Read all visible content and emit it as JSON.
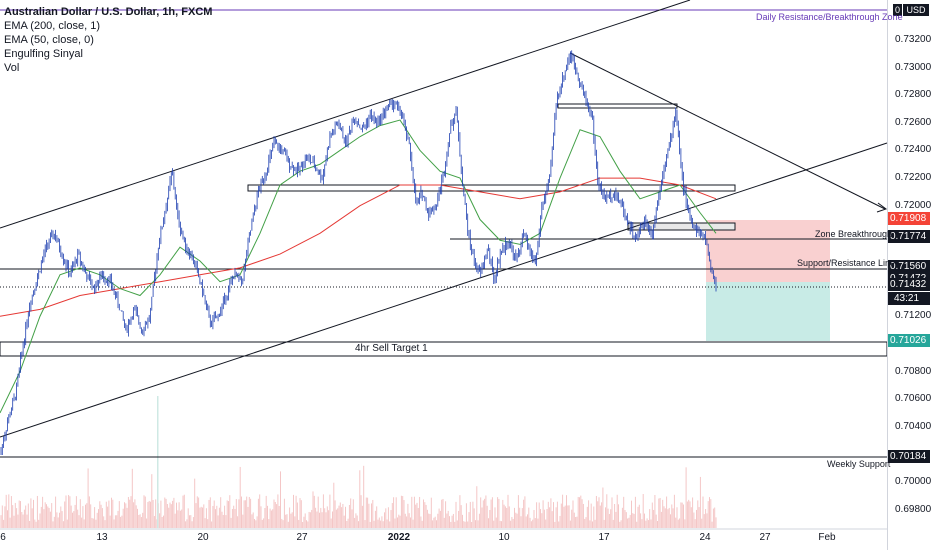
{
  "legend": {
    "symbol": "Australian Dollar / U.S. Dollar, 1h, FXCM",
    "ema200": "EMA (200, close, 1)",
    "ema50": "EMA (50, close, 0)",
    "engulfing": "Engulfing Sinyal",
    "vol": "Vol"
  },
  "currency_badge": "USD",
  "currency_flag": "0",
  "countdown": "43:21",
  "colors": {
    "candle": "#1e3fb0",
    "ema200": "#e53935",
    "ema50": "#43a047",
    "sl_zone": "#f9d0d0",
    "tp_zone": "#c8ebe6",
    "volume": "#f4c6c6",
    "trendline": "#131722",
    "purple_line": "#673ab7"
  },
  "chart_data": {
    "type": "candlestick",
    "x_ticks": [
      {
        "label": "6",
        "bold": false
      },
      {
        "label": "13",
        "bold": false
      },
      {
        "label": "20",
        "bold": false
      },
      {
        "label": "27",
        "bold": false
      },
      {
        "label": "2022",
        "bold": true
      },
      {
        "label": "10",
        "bold": false
      },
      {
        "label": "17",
        "bold": false
      },
      {
        "label": "24",
        "bold": false
      },
      {
        "label": "27",
        "bold": false
      },
      {
        "label": "Feb",
        "bold": false
      }
    ],
    "y_ticks": [
      "0.73200",
      "0.73000",
      "0.72800",
      "0.72600",
      "0.72400",
      "0.72200",
      "0.72000",
      "0.71200",
      "0.70800",
      "0.70600",
      "0.70400",
      "0.70000",
      "0.69800"
    ],
    "ylim": [
      0.6966,
      0.7346
    ],
    "price_labels": [
      {
        "value": "0.71908",
        "price": 0.71908,
        "bg": "#f44336",
        "fg": "#ffffff"
      },
      {
        "value": "0.71774",
        "price": 0.71774,
        "bg": "#131722",
        "fg": "#ffffff"
      },
      {
        "value": "0.71560",
        "price": 0.7156,
        "bg": "#131722",
        "fg": "#ffffff"
      },
      {
        "value": "0.71472",
        "price": 0.71472,
        "bg": "#131722",
        "fg": "#ffffff"
      },
      {
        "value": "0.71432",
        "price": 0.71432,
        "bg": "#131722",
        "fg": "#ffffff"
      },
      {
        "value": "0.71026",
        "price": 0.71026,
        "bg": "#26a69a",
        "fg": "#ffffff"
      },
      {
        "value": "0.70184",
        "price": 0.70184,
        "bg": "#131722",
        "fg": "#ffffff"
      }
    ],
    "horizontal_levels": [
      {
        "name": "Daily Resistance/Breakthrough Zone",
        "price": 0.7339
      },
      {
        "name": "Zone Breakthrough",
        "price": 0.71774
      },
      {
        "name": "Support/Resistance Line",
        "price": 0.7156
      },
      {
        "name": "4hr Sell Target 1",
        "price": 0.71026
      },
      {
        "name": "Weekly Support",
        "price": 0.70184
      }
    ],
    "annotations": [
      "Daily Resistance/Breakthrough Zone",
      "Zone Breakthrough",
      "Support/Resistance Line",
      "4hr Sell Target 1",
      "Weekly Support"
    ],
    "price_path": [
      [
        0,
        0.702
      ],
      [
        8,
        0.7045
      ],
      [
        16,
        0.7065
      ],
      [
        22,
        0.7095
      ],
      [
        30,
        0.713
      ],
      [
        38,
        0.715
      ],
      [
        46,
        0.717
      ],
      [
        54,
        0.718
      ],
      [
        62,
        0.7165
      ],
      [
        70,
        0.715
      ],
      [
        78,
        0.7165
      ],
      [
        86,
        0.715
      ],
      [
        94,
        0.714
      ],
      [
        102,
        0.715
      ],
      [
        110,
        0.7145
      ],
      [
        118,
        0.713
      ],
      [
        126,
        0.711
      ],
      [
        134,
        0.7125
      ],
      [
        142,
        0.711
      ],
      [
        150,
        0.712
      ],
      [
        158,
        0.717
      ],
      [
        166,
        0.72
      ],
      [
        172,
        0.7225
      ],
      [
        178,
        0.719
      ],
      [
        186,
        0.717
      ],
      [
        194,
        0.716
      ],
      [
        202,
        0.714
      ],
      [
        210,
        0.7115
      ],
      [
        218,
        0.712
      ],
      [
        226,
        0.7135
      ],
      [
        234,
        0.715
      ],
      [
        242,
        0.7145
      ],
      [
        250,
        0.718
      ],
      [
        258,
        0.721
      ],
      [
        266,
        0.7225
      ],
      [
        274,
        0.7245
      ],
      [
        282,
        0.724
      ],
      [
        290,
        0.723
      ],
      [
        298,
        0.7225
      ],
      [
        306,
        0.7235
      ],
      [
        314,
        0.723
      ],
      [
        322,
        0.722
      ],
      [
        330,
        0.725
      ],
      [
        338,
        0.726
      ],
      [
        346,
        0.7245
      ],
      [
        354,
        0.7265
      ],
      [
        362,
        0.7255
      ],
      [
        370,
        0.7265
      ],
      [
        378,
        0.726
      ],
      [
        386,
        0.727
      ],
      [
        394,
        0.7275
      ],
      [
        402,
        0.7265
      ],
      [
        410,
        0.724
      ],
      [
        416,
        0.72
      ],
      [
        422,
        0.721
      ],
      [
        428,
        0.7195
      ],
      [
        436,
        0.72
      ],
      [
        444,
        0.7225
      ],
      [
        450,
        0.7255
      ],
      [
        456,
        0.727
      ],
      [
        462,
        0.722
      ],
      [
        468,
        0.718
      ],
      [
        474,
        0.716
      ],
      [
        480,
        0.715
      ],
      [
        488,
        0.717
      ],
      [
        494,
        0.7145
      ],
      [
        500,
        0.7165
      ],
      [
        508,
        0.7175
      ],
      [
        516,
        0.716
      ],
      [
        524,
        0.718
      ],
      [
        530,
        0.7165
      ],
      [
        536,
        0.716
      ],
      [
        542,
        0.72
      ],
      [
        550,
        0.722
      ],
      [
        556,
        0.7275
      ],
      [
        562,
        0.729
      ],
      [
        570,
        0.731
      ],
      [
        578,
        0.7295
      ],
      [
        584,
        0.728
      ],
      [
        592,
        0.7265
      ],
      [
        598,
        0.7215
      ],
      [
        606,
        0.7205
      ],
      [
        614,
        0.721
      ],
      [
        622,
        0.72
      ],
      [
        630,
        0.7185
      ],
      [
        636,
        0.7175
      ],
      [
        644,
        0.719
      ],
      [
        652,
        0.718
      ],
      [
        658,
        0.7205
      ],
      [
        664,
        0.723
      ],
      [
        670,
        0.7245
      ],
      [
        676,
        0.727
      ],
      [
        682,
        0.722
      ],
      [
        688,
        0.7195
      ],
      [
        694,
        0.7185
      ],
      [
        700,
        0.718
      ],
      [
        706,
        0.7175
      ],
      [
        712,
        0.715
      ],
      [
        716,
        0.7143
      ]
    ],
    "ema50_path": [
      [
        0,
        0.705
      ],
      [
        20,
        0.708
      ],
      [
        40,
        0.712
      ],
      [
        60,
        0.715
      ],
      [
        80,
        0.7155
      ],
      [
        100,
        0.715
      ],
      [
        120,
        0.714
      ],
      [
        140,
        0.7135
      ],
      [
        160,
        0.715
      ],
      [
        180,
        0.717
      ],
      [
        200,
        0.716
      ],
      [
        220,
        0.7145
      ],
      [
        240,
        0.715
      ],
      [
        260,
        0.718
      ],
      [
        280,
        0.7215
      ],
      [
        300,
        0.7225
      ],
      [
        320,
        0.723
      ],
      [
        340,
        0.724
      ],
      [
        360,
        0.725
      ],
      [
        380,
        0.7258
      ],
      [
        400,
        0.7262
      ],
      [
        420,
        0.724
      ],
      [
        440,
        0.7225
      ],
      [
        460,
        0.722
      ],
      [
        480,
        0.719
      ],
      [
        500,
        0.7175
      ],
      [
        520,
        0.7172
      ],
      [
        540,
        0.718
      ],
      [
        560,
        0.722
      ],
      [
        580,
        0.7255
      ],
      [
        600,
        0.725
      ],
      [
        620,
        0.7225
      ],
      [
        640,
        0.7205
      ],
      [
        660,
        0.721
      ],
      [
        680,
        0.7215
      ],
      [
        700,
        0.7195
      ],
      [
        716,
        0.718
      ]
    ],
    "ema200_path": [
      [
        0,
        0.712
      ],
      [
        40,
        0.7125
      ],
      [
        80,
        0.7135
      ],
      [
        120,
        0.714
      ],
      [
        160,
        0.7145
      ],
      [
        200,
        0.715
      ],
      [
        240,
        0.7155
      ],
      [
        280,
        0.7165
      ],
      [
        320,
        0.718
      ],
      [
        360,
        0.72
      ],
      [
        400,
        0.7215
      ],
      [
        440,
        0.7215
      ],
      [
        480,
        0.721
      ],
      [
        520,
        0.7205
      ],
      [
        560,
        0.721
      ],
      [
        600,
        0.722
      ],
      [
        640,
        0.722
      ],
      [
        680,
        0.7215
      ],
      [
        716,
        0.7205
      ]
    ]
  }
}
